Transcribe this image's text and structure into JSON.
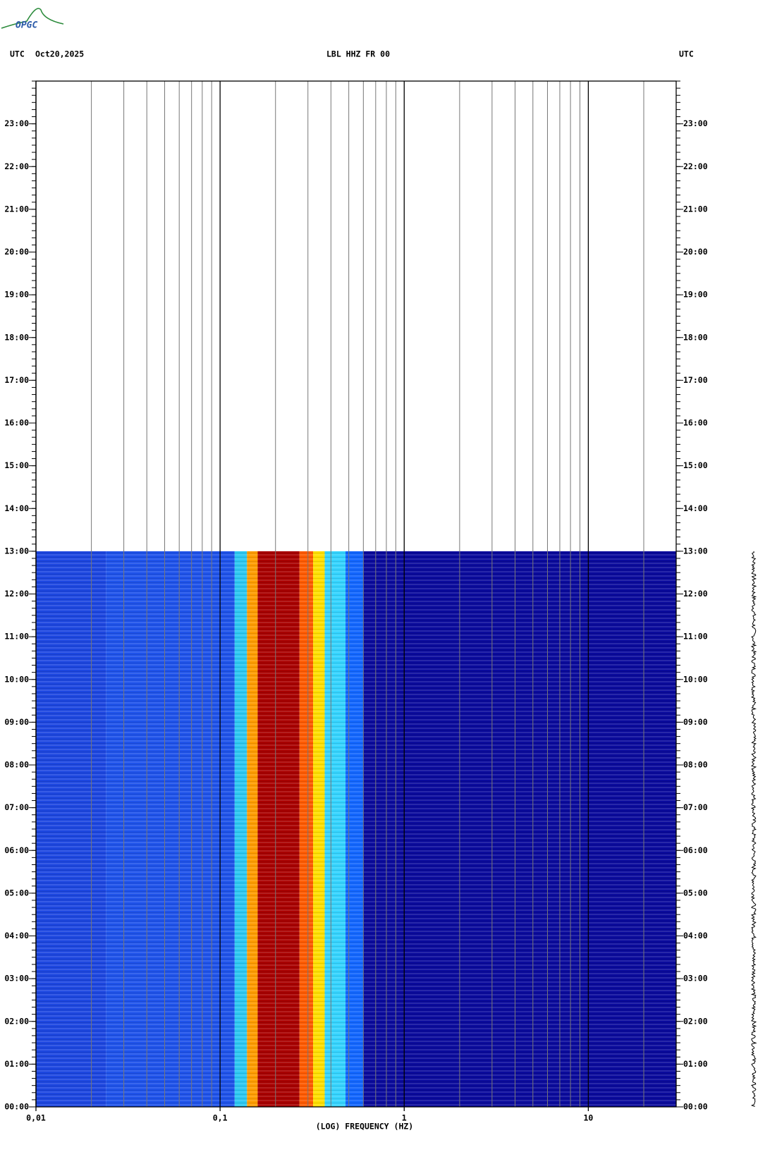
{
  "logo": "OPGC",
  "chart_data": {
    "type": "spectrogram",
    "title": "LBL HHZ FR 00",
    "left_label": "UTC",
    "date": "Oct20,2025",
    "right_label": "UTC",
    "x_label": "(LOG) FREQUENCY (HZ)",
    "log_x": true,
    "xlim": [
      0.01,
      30
    ],
    "xticks": [
      {
        "value": 0.01,
        "label": "0,01"
      },
      {
        "value": 0.1,
        "label": "0,1"
      },
      1,
      10
    ],
    "xgrid": [
      0.02,
      0.03,
      0.04,
      0.05,
      0.06,
      0.07,
      0.08,
      0.09,
      0.2,
      0.3,
      0.4,
      0.5,
      0.6,
      0.7,
      0.8,
      0.9,
      2,
      3,
      4,
      5,
      6,
      7,
      8,
      9,
      20
    ],
    "ylim": [
      0,
      24
    ],
    "yticks": [
      {
        "value": 0,
        "label": "00:00"
      },
      {
        "value": 1,
        "label": "01:00"
      },
      {
        "value": 2,
        "label": "02:00"
      },
      {
        "value": 3,
        "label": "03:00"
      },
      {
        "value": 4,
        "label": "04:00"
      },
      {
        "value": 5,
        "label": "05:00"
      },
      {
        "value": 6,
        "label": "06:00"
      },
      {
        "value": 7,
        "label": "07:00"
      },
      {
        "value": 8,
        "label": "08:00"
      },
      {
        "value": 9,
        "label": "09:00"
      },
      {
        "value": 10,
        "label": "10:00"
      },
      {
        "value": 11,
        "label": "11:00"
      },
      {
        "value": 12,
        "label": "12:00"
      },
      {
        "value": 13,
        "label": "13:00"
      },
      {
        "value": 14,
        "label": "14:00"
      },
      {
        "value": 15,
        "label": "15:00"
      },
      {
        "value": 16,
        "label": "16:00"
      },
      {
        "value": 17,
        "label": "17:00"
      },
      {
        "value": 18,
        "label": "18:00"
      },
      {
        "value": 19,
        "label": "19:00"
      },
      {
        "value": 20,
        "label": "20:00"
      },
      {
        "value": 21,
        "label": "21:00"
      },
      {
        "value": 22,
        "label": "22:00"
      },
      {
        "value": 23,
        "label": "23:00"
      }
    ],
    "time_span": [
      0,
      13
    ],
    "bands": [
      {
        "range": [
          0.01,
          0.024
        ],
        "color": "#1c46e0"
      },
      {
        "range": [
          0.024,
          0.12
        ],
        "color": "#1e52ea"
      },
      {
        "range": [
          0.12,
          0.14
        ],
        "color": "#2cc8f2"
      },
      {
        "range": [
          0.14,
          0.16
        ],
        "color": "#ff9c00"
      },
      {
        "range": [
          0.16,
          0.27
        ],
        "color": "#a80000"
      },
      {
        "range": [
          0.27,
          0.32
        ],
        "color": "#ff5a00"
      },
      {
        "range": [
          0.32,
          0.37
        ],
        "color": "#ffe000"
      },
      {
        "range": [
          0.37,
          0.48
        ],
        "color": "#34d4ff"
      },
      {
        "range": [
          0.48,
          0.6
        ],
        "color": "#1266ff"
      },
      {
        "range": [
          0.6,
          30
        ],
        "color": "#0a0a9c"
      }
    ]
  }
}
